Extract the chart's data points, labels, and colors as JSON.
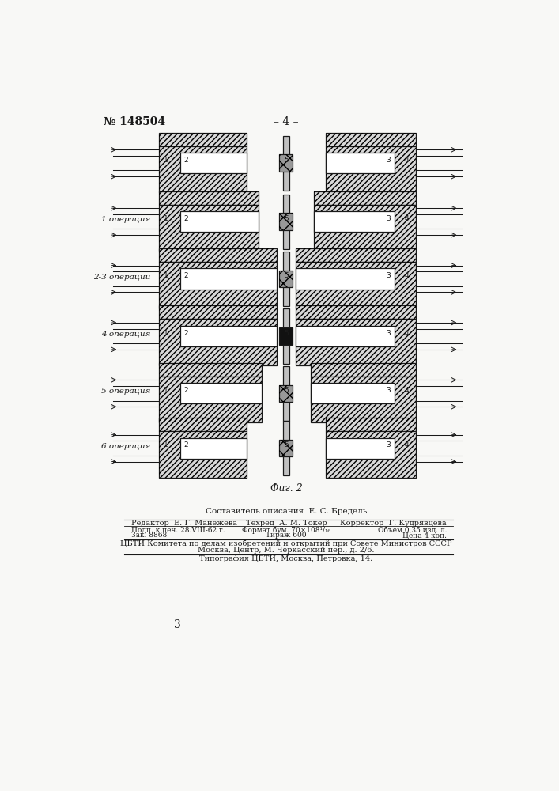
{
  "page_number_left": "№ 148504",
  "page_number_center": "– 4 –",
  "background_color": "#f8f8f6",
  "fig_caption": "Фиг. 2",
  "composer_line": "Составитель описания  Е. С. Бредель",
  "footer_lines": [
    [
      "Редактор  Е. Г. Манежева",
      "Техред  А. М. Токер",
      "Корректор  Г. Кудрявцева"
    ],
    [
      "Подп. к печ. 28.VIII-62 г.",
      "Формат бум. 70×108¹/₁₆",
      "Объем 0,35 изд. л."
    ],
    [
      "Зак. 8868",
      "Тираж 600",
      "Цена 4 коп."
    ],
    [
      "ЦБТИ Комитета по делам изобретений и открытий при Совете Министров СССР"
    ],
    [
      "Москва, Центр, М. Черкасский пер., д. 2/6."
    ],
    [
      "Типография ЦБТИ, Москва, Петровка, 14."
    ]
  ],
  "page_bottom_number": "3",
  "operation_labels": [
    "1 операция",
    "2-3 операции",
    "4 операция",
    "5 операция",
    "6 операция"
  ],
  "hatch_color": "#666666",
  "line_color": "#1a1a1a",
  "dark_fill": "#222222",
  "mid_fill": "#999999",
  "light_fill": "#ffffff"
}
